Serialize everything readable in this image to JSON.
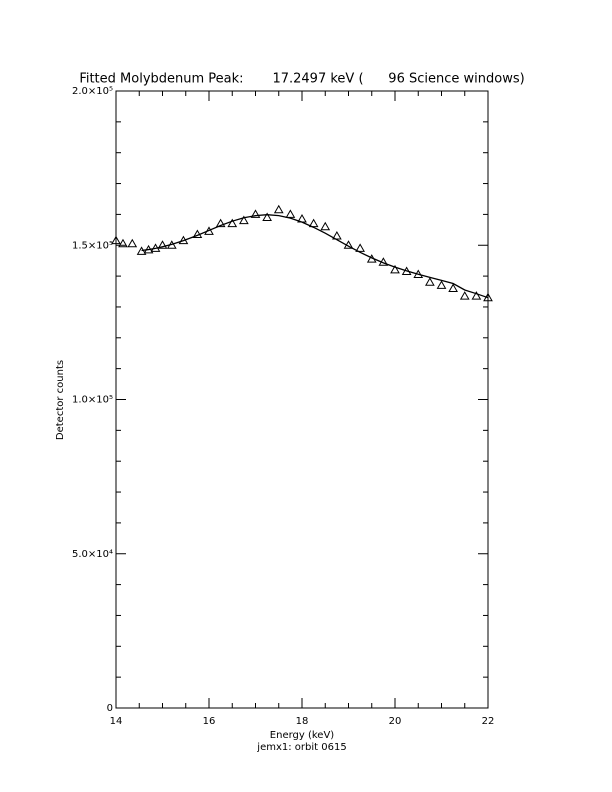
{
  "chart_data": {
    "type": "scatter-fit",
    "title": "Fitted Molybdenum Peak:       17.2497 keV (      96 Science windows)",
    "xlabel": "Energy (keV)",
    "ylabel": "Detector counts",
    "subtitle": "jemx1: orbit 0615",
    "x": [
      14.0,
      14.15,
      14.35,
      14.55,
      14.7,
      14.85,
      15.0,
      15.2,
      15.45,
      15.75,
      16.0,
      16.25,
      16.5,
      16.75,
      17.0,
      17.25,
      17.5,
      17.75,
      18.0,
      18.25,
      18.5,
      18.75,
      19.0,
      19.25,
      19.5,
      19.75,
      20.0,
      20.25,
      20.5,
      20.75,
      21.0,
      21.25,
      21.5,
      21.75,
      22.0
    ],
    "series": [
      {
        "name": "data",
        "color": "#000000",
        "marker": "triangle",
        "values": [
          151500,
          150500,
          150500,
          148000,
          148500,
          149000,
          150000,
          150000,
          151500,
          153500,
          154500,
          157000,
          157000,
          158000,
          160000,
          159000,
          161500,
          160000,
          158500,
          157000,
          156000,
          153000,
          150000,
          149000,
          145500,
          144500,
          142000,
          141500,
          140500,
          138000,
          137000,
          136000,
          133500,
          133500,
          133000
        ]
      },
      {
        "name": "fit",
        "color": "#000000",
        "marker": "line",
        "values": [
          null,
          null,
          null,
          148300,
          148600,
          149000,
          149500,
          150300,
          151500,
          153200,
          154800,
          156400,
          157800,
          158900,
          159600,
          159900,
          159600,
          158800,
          157500,
          155800,
          153900,
          151800,
          149700,
          147700,
          145900,
          144300,
          142900,
          141700,
          140600,
          139600,
          138600,
          137600,
          135500,
          134300,
          133000
        ]
      }
    ],
    "xlim": [
      14,
      22
    ],
    "xticks": [
      14,
      16,
      18,
      20,
      22
    ],
    "ylim": [
      0,
      200000
    ],
    "yticks": [
      0,
      {
        "value": 50000,
        "label": "5.0×10⁴"
      },
      {
        "value": 100000,
        "label": "1.0×10⁵"
      },
      {
        "value": 150000,
        "label": "1.5×10⁵"
      },
      {
        "value": 200000,
        "label": "2.0×10⁵"
      }
    ]
  }
}
